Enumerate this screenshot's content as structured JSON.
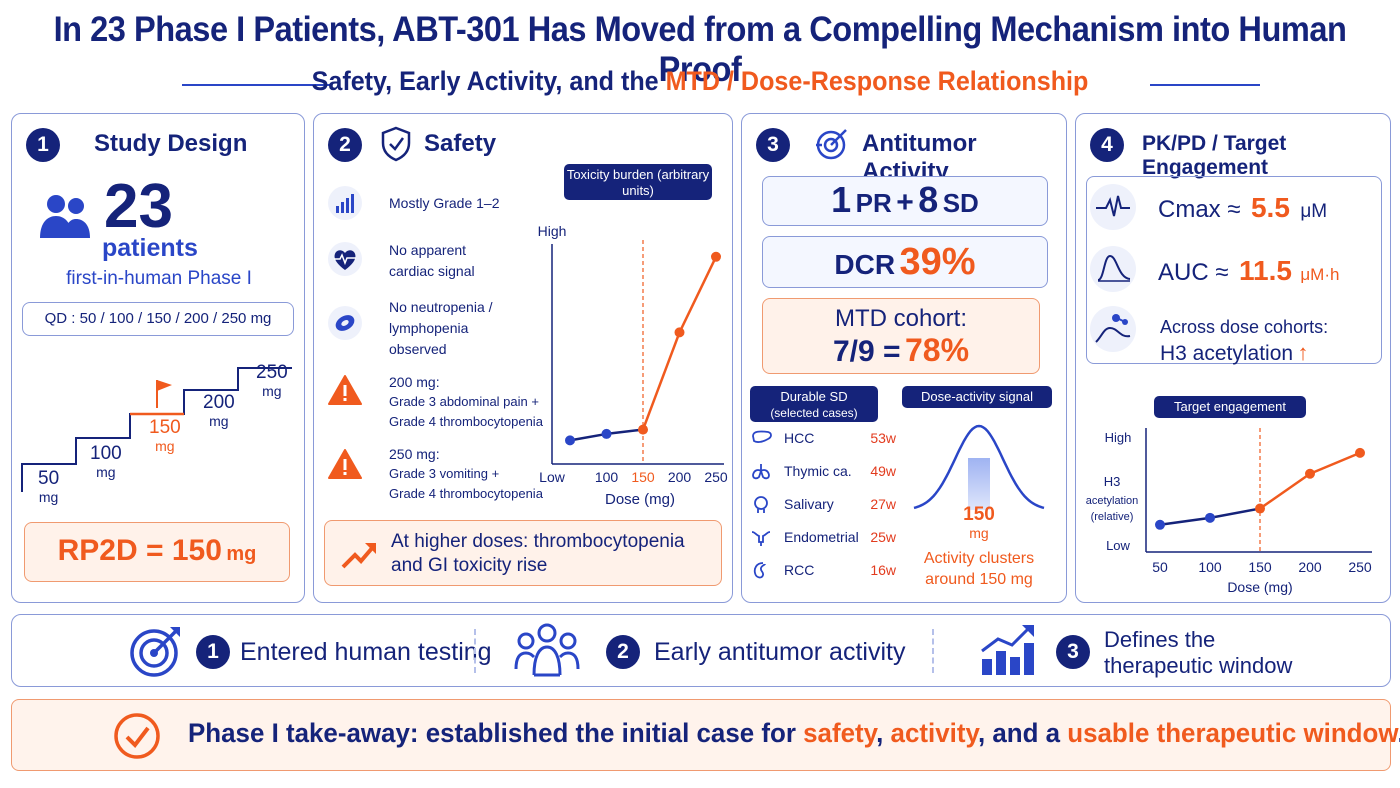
{
  "header": {
    "title": "In 23 Phase I Patients, ABT-301 Has Moved from a Compelling Mechanism into Human Proof",
    "subtitle_prefix": "Safety, Early Activity, and the ",
    "subtitle_highlight": "MTD / Dose-Response Relationship"
  },
  "study_design": {
    "number": "1",
    "title": "Study Design",
    "patient_count": "23",
    "patient_label": "patients",
    "phase_label": "first-in-human Phase I",
    "dosing": "QD : 50 / 100 / 150 / 200 / 250 mg",
    "steps": [
      {
        "dose": "50",
        "unit": "mg"
      },
      {
        "dose": "100",
        "unit": "mg"
      },
      {
        "dose": "150",
        "unit": "mg"
      },
      {
        "dose": "200",
        "unit": "mg"
      },
      {
        "dose": "250",
        "unit": "mg"
      }
    ],
    "rp2d_label": "RP2D = 150",
    "rp2d_unit": "mg"
  },
  "safety": {
    "number": "2",
    "title": "Safety",
    "items": [
      {
        "icon": "bar-chart-icon",
        "text": "Mostly Grade 1–2"
      },
      {
        "icon": "heart-pulse-icon",
        "line1": "No apparent",
        "line2": "cardiac signal"
      },
      {
        "icon": "blood-cell-icon",
        "line1": "No neutropenia /",
        "line2": "lymphopenia",
        "line3": "observed"
      },
      {
        "icon": "warning-icon",
        "line1": "200 mg:",
        "line2": "Grade 3 abdominal pain +",
        "line3": "Grade 4 thrombocytopenia"
      },
      {
        "icon": "warning-icon",
        "line1": "250 mg:",
        "line2": "Grade 3 vomiting +",
        "line3": "Grade 4 thrombocytopenia"
      }
    ],
    "footer_line1": "At higher doses: thrombocytopenia",
    "footer_line2": "and GI toxicity rise"
  },
  "antitumor": {
    "number": "3",
    "title": "Antitumor Activity",
    "response_pr": "1",
    "response_pr_label": "PR",
    "response_sd": "8",
    "response_sd_label": "SD",
    "dcr_label": "DCR",
    "dcr_value": "39%",
    "mtd_label": "MTD cohort:",
    "mtd_fraction": "7/9 =",
    "mtd_value": "78%",
    "durable_title_1": "Durable SD",
    "durable_title_2": "(selected cases)",
    "durable": [
      {
        "icon": "liver-icon",
        "tumor": "HCC",
        "weeks": "53w"
      },
      {
        "icon": "lung-icon",
        "tumor": "Thymic ca.",
        "weeks": "49w"
      },
      {
        "icon": "head-icon",
        "tumor": "Salivary",
        "weeks": "27w"
      },
      {
        "icon": "uterus-icon",
        "tumor": "Endometrial",
        "weeks": "25w"
      },
      {
        "icon": "kidney-icon",
        "tumor": "RCC",
        "weeks": "16w"
      }
    ],
    "signal_title": "Dose-activity signal",
    "signal_dose": "150",
    "signal_unit": "mg",
    "signal_caption_1": "Activity clusters",
    "signal_caption_2": "around 150 mg"
  },
  "pkpd": {
    "number": "4",
    "title": "PK/PD / Target Engagement",
    "cmax_label": "Cmax ≈",
    "cmax_value": "5.5",
    "cmax_unit": "μM",
    "auc_label": "AUC ≈",
    "auc_value": "11.5",
    "auc_unit": "μM·h",
    "h3_line1": "Across dose cohorts:",
    "h3_line2": "H3 acetylation",
    "h3_arrow": "↑"
  },
  "chart_data": [
    {
      "type": "line",
      "title": "Toxicity burden (arbitrary units)",
      "xlabel": "Dose (mg)",
      "ylabel": "",
      "x": [
        50,
        100,
        150,
        200,
        250
      ],
      "x_tick_labels": [
        "Low",
        "100",
        "150",
        "200",
        "250"
      ],
      "y_tick_labels": [
        "High"
      ],
      "series": [
        {
          "values": [
            1.0,
            1.3,
            1.5,
            6.0,
            9.5
          ]
        }
      ],
      "ylim": [
        0,
        10
      ],
      "reference_line_x": 150,
      "grid": false
    },
    {
      "type": "area",
      "title": "Dose-activity signal",
      "xlabel": "",
      "ylabel": "",
      "peak_x": 150,
      "grid": false
    },
    {
      "type": "line",
      "title": "Target engagement",
      "xlabel": "Dose (mg)",
      "ylabel": "H3 acetylation (relative)",
      "x": [
        50,
        100,
        150,
        200,
        250
      ],
      "x_tick_labels": [
        "50",
        "100",
        "150",
        "200",
        "250"
      ],
      "y_tick_labels": [
        "Low",
        "High"
      ],
      "series": [
        {
          "values": [
            2.0,
            2.6,
            3.4,
            6.4,
            8.2
          ]
        }
      ],
      "ylim": [
        0,
        10
      ],
      "reference_line_x": 150,
      "grid": false
    }
  ],
  "summary_strip": [
    {
      "icon": "target-icon",
      "number": "1",
      "text": "Entered human testing"
    },
    {
      "icon": "people-icon",
      "number": "2",
      "text": "Early antitumor activity"
    },
    {
      "icon": "growth-chart-icon",
      "number": "3",
      "line1": "Defines the",
      "line2": "therapeutic window"
    }
  ],
  "takeaway": {
    "prefix": "Phase I take-away: established the initial case for ",
    "w1": "safety",
    "sep1": ", ",
    "w2": "activity",
    "sep2": ", and a ",
    "w3": "usable therapeutic window",
    "end": "."
  },
  "colors": {
    "navy": "#15237a",
    "blue": "#2a46c7",
    "orange": "#f05a1e",
    "panel_border": "#8a9ad8",
    "orange_fill": "#fff2ea"
  }
}
